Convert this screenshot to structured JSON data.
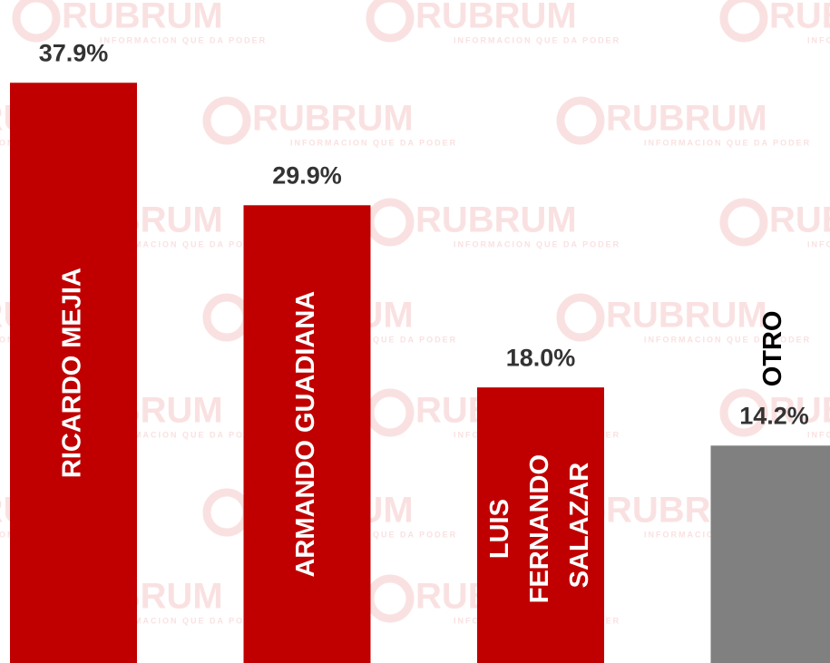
{
  "chart_data": {
    "type": "bar",
    "categories": [
      "RICARDO MEJIA",
      "ARMANDO GUADIANA",
      "LUIS FERNANDO SALAZAR",
      "OTRO"
    ],
    "values": [
      37.9,
      29.9,
      18.0,
      14.2
    ],
    "value_labels": [
      "37.9%",
      "29.9%",
      "18.0%",
      "14.2%"
    ],
    "colors": [
      "#c00000",
      "#c00000",
      "#c00000",
      "#808080"
    ],
    "watermark": "RUBRUM",
    "watermark_tagline": "INFORMACION QUE DA PODER"
  }
}
